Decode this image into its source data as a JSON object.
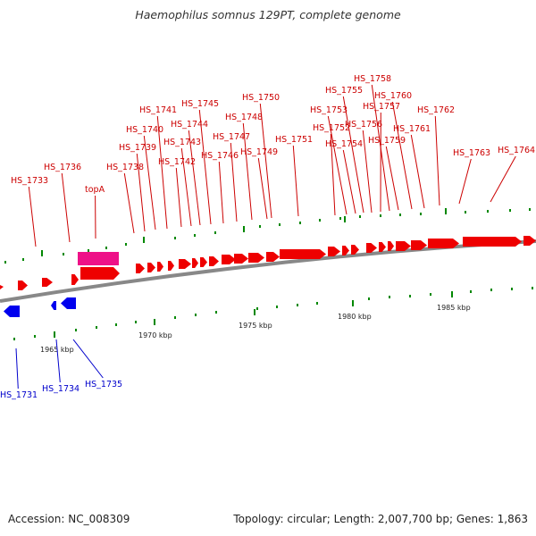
{
  "title": "Haemophilus somnus 129PT, complete genome",
  "footer": {
    "accession": "Accession: NC_008309",
    "summary": "Topology: circular; Length: 2,007,700 bp; Genes: 1,863"
  },
  "colors": {
    "forward_gene": "#ee0000",
    "reverse_gene": "#0000ee",
    "highlight_gene": "#ee1188",
    "backbone": "#888888",
    "tick": "#008800",
    "forward_label": "#cc0000",
    "reverse_label": "#0000cc"
  },
  "scale_labels": [
    "1965 kbp",
    "1970 kbp",
    "1975 kbp",
    "1980 kbp",
    "1985 kbp"
  ],
  "forward_genes": [
    "HS_1733",
    "HS_1736",
    "topA",
    "HS_1738",
    "HS_1739",
    "HS_1740",
    "HS_1741",
    "HS_1742",
    "HS_1743",
    "HS_1744",
    "HS_1745",
    "HS_1746",
    "HS_1747",
    "HS_1748",
    "HS_1749",
    "HS_1750",
    "HS_1751",
    "HS_1752",
    "HS_1753",
    "HS_1754",
    "HS_1755",
    "HS_1756",
    "HS_1757",
    "HS_1758",
    "HS_1759",
    "HS_1760",
    "HS_1761",
    "HS_1762",
    "HS_1763",
    "HS_1764"
  ],
  "reverse_genes": [
    "HS_1731",
    "HS_1734",
    "HS_1735"
  ]
}
